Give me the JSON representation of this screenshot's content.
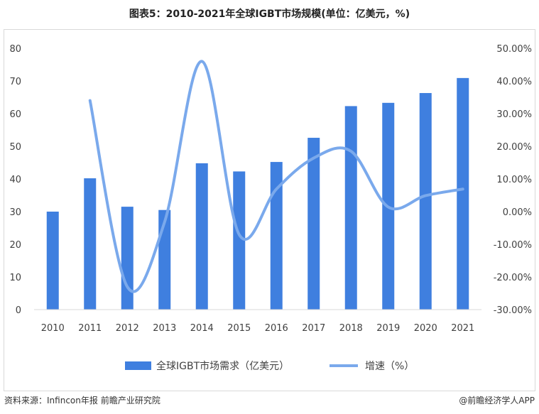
{
  "title": "图表5：2010-2021年全球IGBT市场规模(单位：亿美元，%)",
  "colors": {
    "bar": "#3f7fdf",
    "line": "#7aa9ec",
    "axis": "#d9d9d9",
    "text": "#404040"
  },
  "chart_data": {
    "type": "bar",
    "categories": [
      "2010",
      "2011",
      "2012",
      "2013",
      "2014",
      "2015",
      "2016",
      "2017",
      "2018",
      "2019",
      "2020",
      "2021"
    ],
    "series": [
      {
        "name": "全球IGBT市场需求（亿美元）",
        "type": "bar",
        "axis": "left",
        "values": [
          30.0,
          40.2,
          31.5,
          30.5,
          44.8,
          42.3,
          45.2,
          52.6,
          62.3,
          63.3,
          66.3,
          70.9
        ]
      },
      {
        "name": "增速（%）",
        "type": "line",
        "axis": "right",
        "values": [
          null,
          34.0,
          -23.0,
          -3.2,
          46.0,
          -7.0,
          6.9,
          16.4,
          18.5,
          1.4,
          4.9,
          6.9
        ]
      }
    ],
    "y_left": {
      "ylim": [
        0,
        80
      ],
      "ticks": [
        "0",
        "10",
        "20",
        "30",
        "40",
        "50",
        "60",
        "70",
        "80"
      ]
    },
    "y_right": {
      "ylim": [
        -30,
        50
      ],
      "ticks": [
        "-30.00%",
        "-20.00%",
        "-10.00%",
        "0.00%",
        "10.00%",
        "20.00%",
        "30.00%",
        "40.00%",
        "50.00%"
      ]
    },
    "legend_placement": "bottom",
    "grid": false
  },
  "footer": {
    "source_label": "资料来源：",
    "source_org": "Infincon年报",
    "source_institute": "前瞻产业研究院",
    "credit": "@前瞻经济学人APP"
  }
}
